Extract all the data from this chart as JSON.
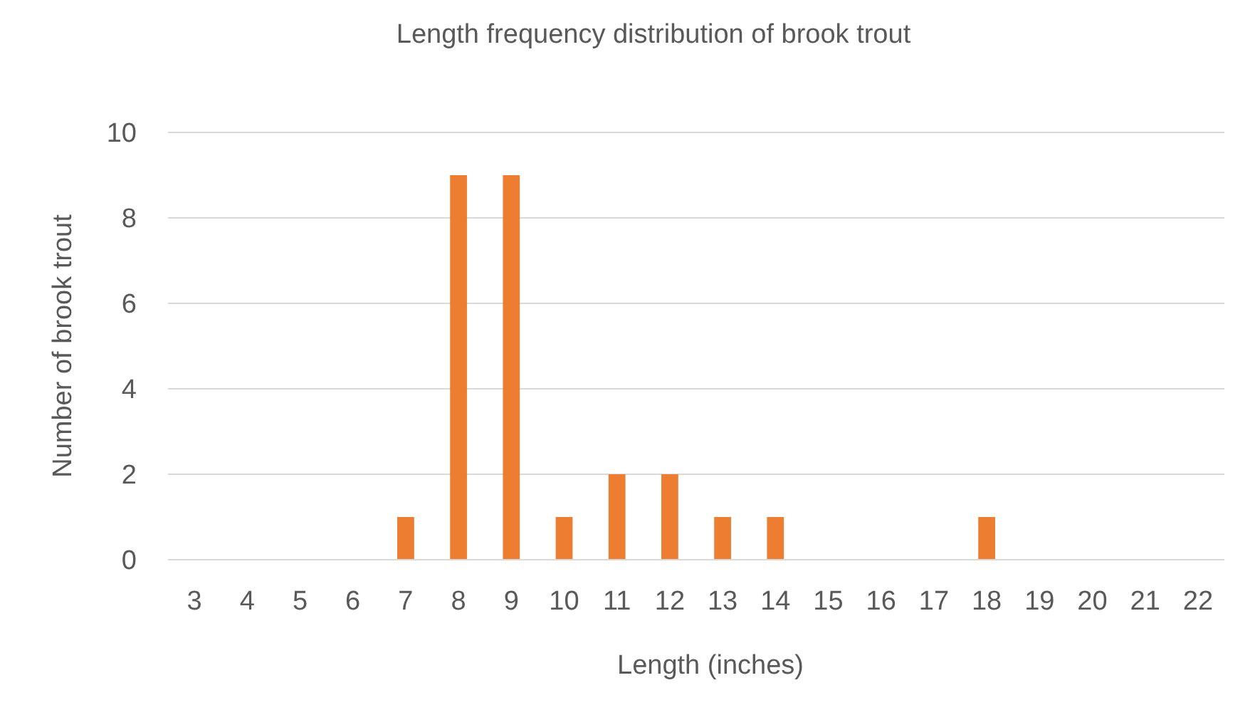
{
  "chart_data": {
    "type": "bar",
    "title": "Length frequency distribution of brook trout",
    "xlabel": "Length (inches)",
    "ylabel": "Number of brook trout",
    "categories": [
      "3",
      "4",
      "5",
      "6",
      "7",
      "8",
      "9",
      "10",
      "11",
      "12",
      "13",
      "14",
      "15",
      "16",
      "17",
      "18",
      "19",
      "20",
      "21",
      "22"
    ],
    "values": [
      0,
      0,
      0,
      0,
      1,
      9,
      9,
      1,
      2,
      2,
      1,
      1,
      0,
      0,
      0,
      1,
      0,
      0,
      0,
      0
    ],
    "color": "#ed7d31",
    "ylim": [
      0,
      10
    ],
    "yticks": [
      0,
      2,
      4,
      6,
      8,
      10
    ],
    "grid": "y"
  }
}
